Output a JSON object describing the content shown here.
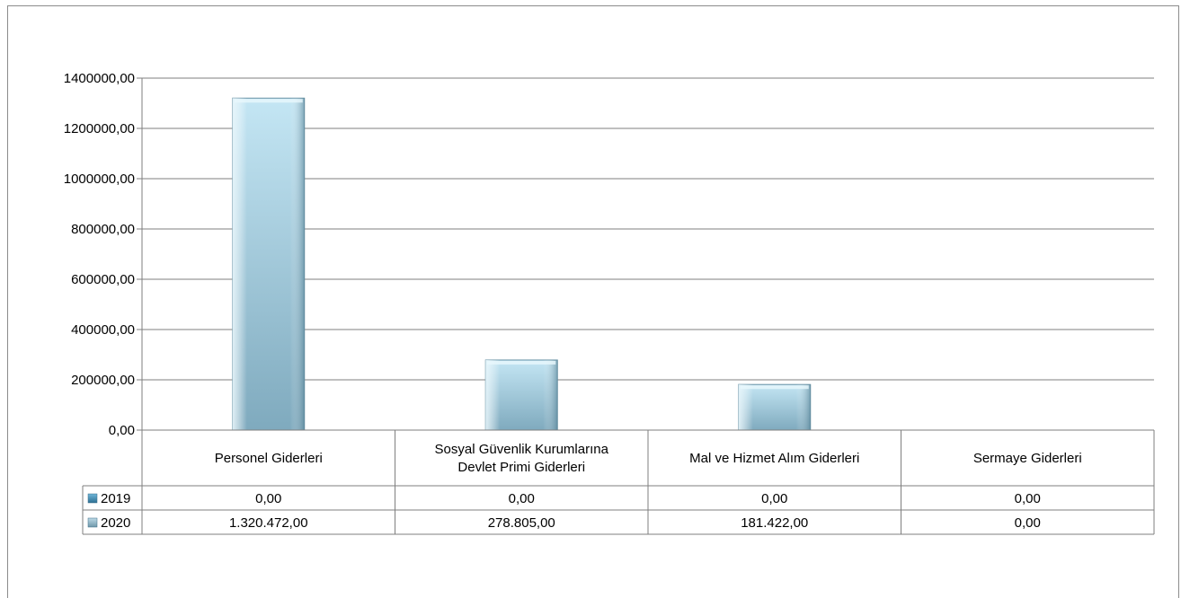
{
  "chart_data": {
    "type": "bar",
    "categories": [
      [
        "Personel Giderleri"
      ],
      [
        "Sosyal Güvenlik Kurumlarına",
        "Devlet Primi Giderleri"
      ],
      [
        "Mal ve Hizmet Alım Giderleri"
      ],
      [
        "Sermaye Giderleri"
      ]
    ],
    "series": [
      {
        "name": "2019",
        "values": [
          0,
          0,
          0,
          0
        ],
        "value_labels": [
          "0,00",
          "0,00",
          "0,00",
          "0,00"
        ],
        "color": "#4a90b8"
      },
      {
        "name": "2020",
        "values": [
          1320472,
          278805,
          181422,
          0
        ],
        "value_labels": [
          "1.320.472,00",
          "278.805,00",
          "181.422,00",
          "0,00"
        ],
        "color": "#a6d2e6"
      }
    ],
    "ylim": [
      0,
      1400000
    ],
    "yticks": [
      0,
      200000,
      400000,
      600000,
      800000,
      1000000,
      1200000,
      1400000
    ],
    "ytick_labels": [
      "0,00",
      "200000,00",
      "400000,00",
      "600000,00",
      "800000,00",
      "1000000,00",
      "1200000,00",
      "1400000,00"
    ],
    "grid": true,
    "legend": "data-table",
    "title": "",
    "xlabel": "",
    "ylabel": ""
  }
}
